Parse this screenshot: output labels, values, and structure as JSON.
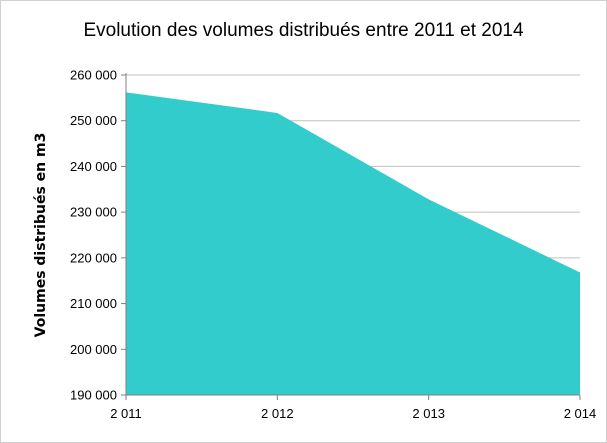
{
  "chart_data": {
    "type": "area",
    "title": "Evolution des volumes distribués entre 2011 et 2014",
    "xlabel": "",
    "ylabel": "Volumes distribués en m3",
    "x": [
      "2 011",
      "2 012",
      "2 013",
      "2 014"
    ],
    "values": [
      256200,
      251700,
      232800,
      216800
    ],
    "ylim": [
      190000,
      260000
    ],
    "yticks": [
      190000,
      200000,
      210000,
      220000,
      230000,
      240000,
      250000,
      260000
    ],
    "ytick_labels": [
      "190 000",
      "200 000",
      "210 000",
      "220 000",
      "230 000",
      "240 000",
      "250 000",
      "260 000"
    ],
    "grid": true,
    "legend": "none",
    "colors": {
      "fill": "#33cccc",
      "grid": "#c0c0c0",
      "axis": "#808080"
    }
  }
}
